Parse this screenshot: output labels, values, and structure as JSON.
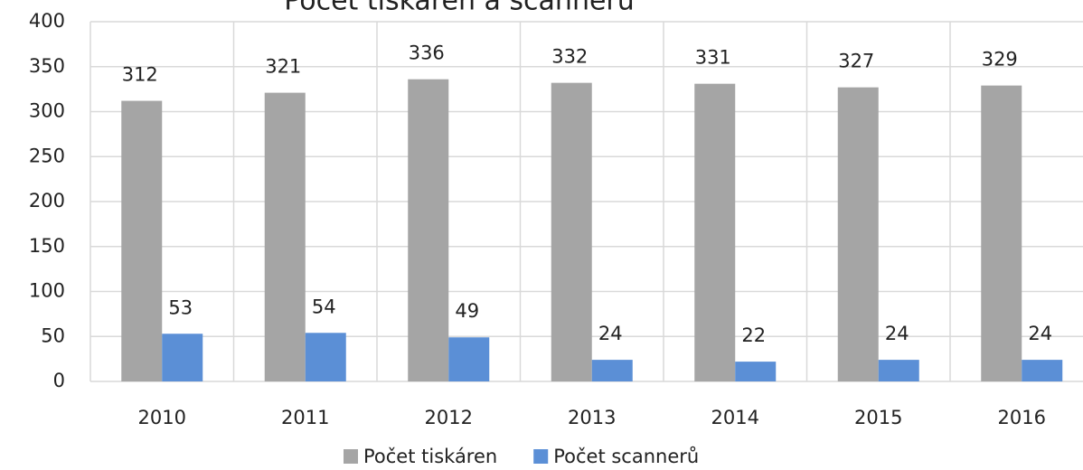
{
  "chart_data": {
    "type": "bar",
    "title": "Počet tiskáren a scannerů",
    "categories": [
      "2010",
      "2011",
      "2012",
      "2013",
      "2014",
      "2015",
      "2016"
    ],
    "series": [
      {
        "name": "Počet tiskáren",
        "color": "#a5a5a5",
        "values": [
          312,
          321,
          336,
          332,
          331,
          327,
          329
        ]
      },
      {
        "name": "Počet scannerů",
        "color": "#5b8fd6",
        "values": [
          53,
          54,
          49,
          24,
          22,
          24,
          24
        ]
      }
    ],
    "ylim": [
      0,
      400
    ],
    "yticks": [
      0,
      50,
      100,
      150,
      200,
      250,
      300,
      350,
      400
    ],
    "grid": true,
    "legend": "bottom"
  }
}
